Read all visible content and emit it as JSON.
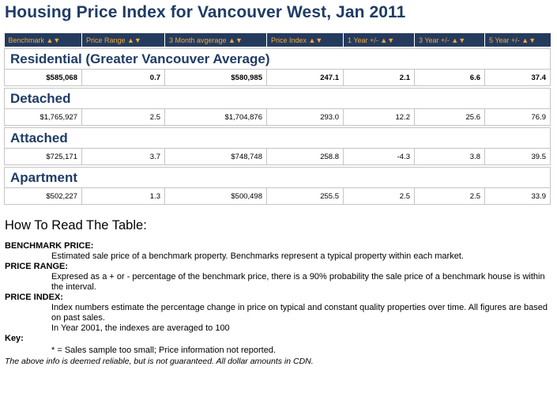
{
  "title": "Housing Price Index for Vancouver West, Jan 2011",
  "columns": [
    "Benchmark ▲▼",
    "Price Range ▲▼",
    "3 Month avgerage ▲▼",
    "Price Index ▲▼",
    "1 Year +/- ▲▼",
    "3 Year +/- ▲▼",
    "5 Year +/- ▲▼"
  ],
  "groups": [
    {
      "name": "Residential (Greater Vancouver Average)",
      "values": [
        "$585,068",
        "0.7",
        "$580,985",
        "247.1",
        "2.1",
        "6.6",
        "37.4"
      ]
    },
    {
      "name": "Detached",
      "values": [
        "$1,765,927",
        "2.5",
        "$1,704,876",
        "293.0",
        "12.2",
        "25.6",
        "76.9"
      ]
    },
    {
      "name": "Attached",
      "values": [
        "$725,171",
        "3.7",
        "$748,748",
        "258.8",
        "-4.3",
        "3.8",
        "39.5"
      ]
    },
    {
      "name": "Apartment",
      "values": [
        "$502,227",
        "1.3",
        "$500,498",
        "255.5",
        "2.5",
        "2.5",
        "33.9"
      ]
    }
  ],
  "howto_heading": "How To Read The Table:",
  "definitions": [
    {
      "term": "BENCHMARK PRICE:",
      "lines": [
        "Estimated sale price of a benchmark property. Benchmarks represent a typical property within each market."
      ]
    },
    {
      "term": "PRICE RANGE:",
      "lines": [
        "Expresed as a + or - percentage of the benchmark price, there is a 90% probability the sale price of a benchmark house is within the interval."
      ]
    },
    {
      "term": "PRICE INDEX:",
      "lines": [
        "Index numbers estimate the percentage change in price on typical and constant quality properties over time. All figures are based on past sales.",
        "In Year 2001, the indexes are averaged to 100"
      ]
    }
  ],
  "key_term": "Key:",
  "key_text": "* = Sales sample too small; Price information not reported.",
  "disclaimer": "The above info is deemed reliable, but is not guaranteed. All dollar amounts in CDN.",
  "colors": {
    "title": "#1f3c66",
    "header_bg": "#253b5e",
    "header_text": "#f2a83a"
  }
}
